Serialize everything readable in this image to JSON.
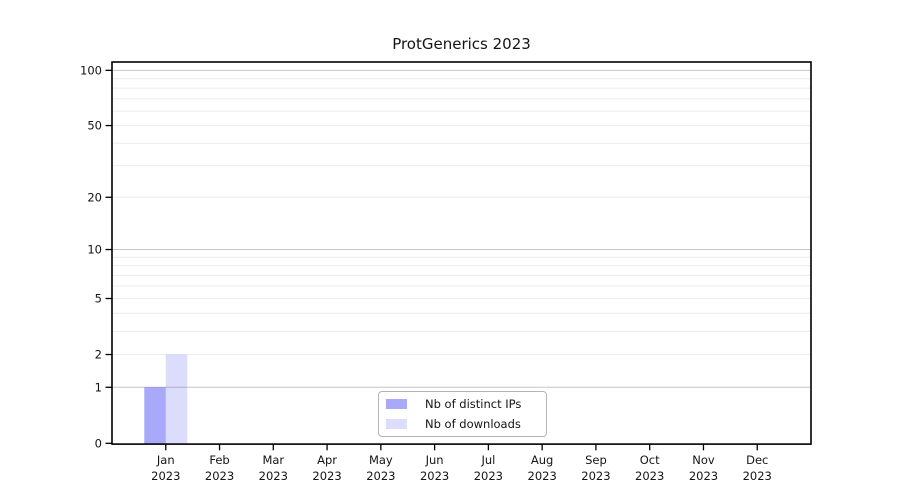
{
  "chart_data": {
    "type": "bar",
    "title": "ProtGenerics 2023",
    "categories": [
      "Jan",
      "Feb",
      "Mar",
      "Apr",
      "May",
      "Jun",
      "Jul",
      "Aug",
      "Sep",
      "Oct",
      "Nov",
      "Dec"
    ],
    "year": "2023",
    "series": [
      {
        "name": "Nb of distinct IPs",
        "color": "#a8a8f8",
        "fill": "rgba(10,10,240,0.35)",
        "values": [
          1,
          0,
          0,
          0,
          0,
          0,
          0,
          0,
          0,
          0,
          0,
          0
        ]
      },
      {
        "name": "Nb of downloads",
        "color": "#dcdcfa",
        "fill": "rgba(10,10,240,0.14)",
        "values": [
          2,
          0,
          0,
          0,
          0,
          0,
          0,
          0,
          0,
          0,
          0,
          0
        ]
      }
    ],
    "yscale": "log1p",
    "ylim": [
      0,
      111
    ],
    "y_ticks": [
      0,
      1,
      2,
      5,
      10,
      20,
      50,
      100
    ],
    "y_major_gridlines": [
      1,
      10,
      100
    ],
    "y_minor_gridlines": [
      2,
      3,
      4,
      5,
      6,
      7,
      8,
      9,
      20,
      30,
      40,
      50,
      60,
      70,
      80,
      90
    ],
    "grid": "horizontal",
    "legend_position": "lower-center-inside",
    "xlabel": "",
    "ylabel": ""
  },
  "colors": {
    "major_grid": "#c6c6c6",
    "minor_grid": "#ececec",
    "spine": "#000000",
    "text": "#141414"
  }
}
